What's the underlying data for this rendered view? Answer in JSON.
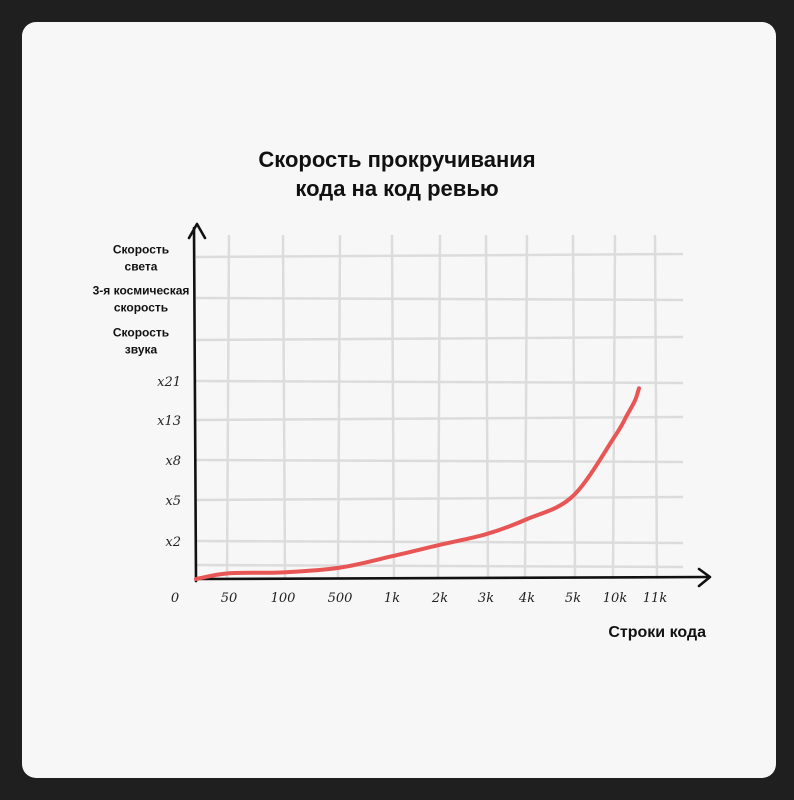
{
  "chart_data": {
    "type": "line",
    "title_lines": [
      "Скорость прокручивания",
      "кода на код ревью"
    ],
    "xlabel": "Строки кода",
    "x_origin_label": "0",
    "x_ticks": [
      "50",
      "100",
      "500",
      "1k",
      "2k",
      "3k",
      "4k",
      "5k",
      "10k",
      "11k"
    ],
    "y_ticks": [
      {
        "lines": [
          "x2"
        ],
        "style": "number"
      },
      {
        "lines": [
          "x5"
        ],
        "style": "number"
      },
      {
        "lines": [
          "x8"
        ],
        "style": "number"
      },
      {
        "lines": [
          "x13"
        ],
        "style": "number"
      },
      {
        "lines": [
          "x21"
        ],
        "style": "number"
      },
      {
        "lines": [
          "Скорость",
          "звука"
        ],
        "style": "label"
      },
      {
        "lines": [
          "3-я космическая",
          "скорость"
        ],
        "style": "label"
      },
      {
        "lines": [
          "Скорость",
          "света"
        ],
        "style": "label"
      }
    ],
    "series": [
      {
        "color": "#e85555",
        "points": [
          [
            0,
            0.0
          ],
          [
            50,
            0.3
          ],
          [
            100,
            0.35
          ],
          [
            500,
            0.6
          ],
          [
            1000,
            1.2
          ],
          [
            2000,
            1.8
          ],
          [
            3000,
            2.5
          ],
          [
            4000,
            3.6
          ],
          [
            5000,
            5.3
          ],
          [
            10000,
            11.0
          ],
          [
            10300,
            14.0
          ],
          [
            10500,
            17.0
          ],
          [
            10600,
            19.5
          ]
        ]
      }
    ],
    "grid": true
  }
}
